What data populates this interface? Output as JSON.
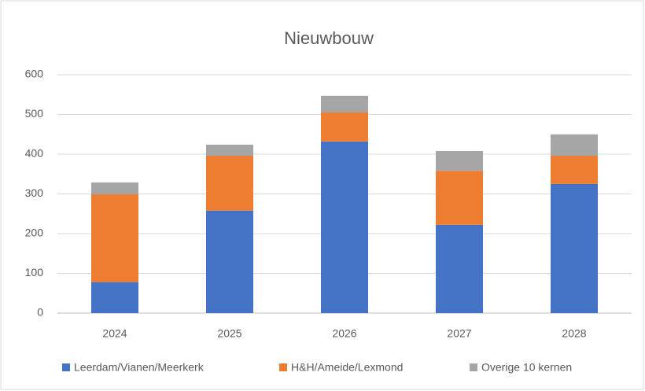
{
  "chart_data": {
    "type": "stacked_bar",
    "title": "Nieuwbouw",
    "categories": [
      "2024",
      "2025",
      "2026",
      "2027",
      "2028"
    ],
    "series": [
      {
        "name": "Leerdam/Vianen/Meerkerk",
        "color": "#4472c4",
        "values": [
          78,
          258,
          432,
          222,
          325
        ]
      },
      {
        "name": "H&H/Ameide/Lexmond",
        "color": "#ed7d31",
        "values": [
          221,
          138,
          73,
          136,
          71
        ]
      },
      {
        "name": "Overige 10 kernen",
        "color": "#a5a5a5",
        "values": [
          30,
          28,
          42,
          50,
          54
        ]
      }
    ],
    "ylim": [
      0,
      600
    ],
    "yticks": [
      0,
      100,
      200,
      300,
      400,
      500,
      600
    ],
    "grid": true,
    "legend": "bottom"
  }
}
